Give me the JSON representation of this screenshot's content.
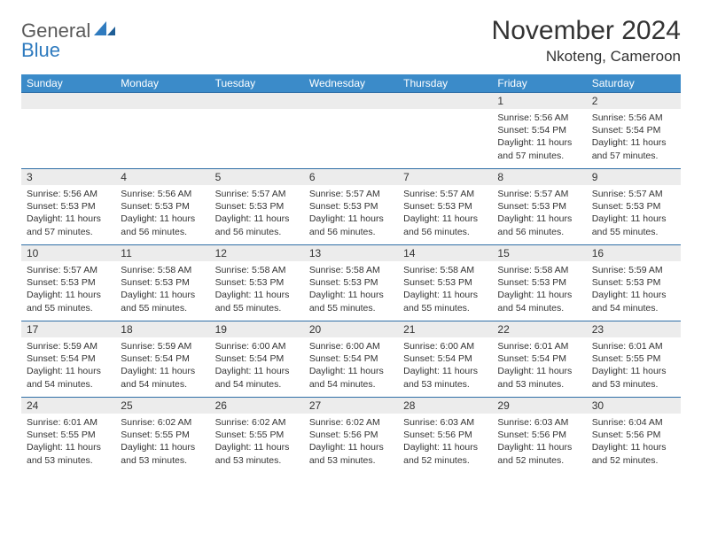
{
  "logo": {
    "word1": "General",
    "word2": "Blue"
  },
  "title": "November 2024",
  "location": "Nkoteng, Cameroon",
  "colors": {
    "header_bg": "#3b8bc9",
    "header_text": "#ffffff",
    "cell_border": "#2f6fa6",
    "daynum_bg": "#ececec",
    "text": "#333333",
    "logo_gray": "#5a5a5a",
    "logo_blue": "#2f7bbf"
  },
  "day_names": [
    "Sunday",
    "Monday",
    "Tuesday",
    "Wednesday",
    "Thursday",
    "Friday",
    "Saturday"
  ],
  "weeks": [
    [
      {
        "n": "",
        "sr": "",
        "ss": "",
        "d1": "",
        "d2": ""
      },
      {
        "n": "",
        "sr": "",
        "ss": "",
        "d1": "",
        "d2": ""
      },
      {
        "n": "",
        "sr": "",
        "ss": "",
        "d1": "",
        "d2": ""
      },
      {
        "n": "",
        "sr": "",
        "ss": "",
        "d1": "",
        "d2": ""
      },
      {
        "n": "",
        "sr": "",
        "ss": "",
        "d1": "",
        "d2": ""
      },
      {
        "n": "1",
        "sr": "Sunrise: 5:56 AM",
        "ss": "Sunset: 5:54 PM",
        "d1": "Daylight: 11 hours",
        "d2": "and 57 minutes."
      },
      {
        "n": "2",
        "sr": "Sunrise: 5:56 AM",
        "ss": "Sunset: 5:54 PM",
        "d1": "Daylight: 11 hours",
        "d2": "and 57 minutes."
      }
    ],
    [
      {
        "n": "3",
        "sr": "Sunrise: 5:56 AM",
        "ss": "Sunset: 5:53 PM",
        "d1": "Daylight: 11 hours",
        "d2": "and 57 minutes."
      },
      {
        "n": "4",
        "sr": "Sunrise: 5:56 AM",
        "ss": "Sunset: 5:53 PM",
        "d1": "Daylight: 11 hours",
        "d2": "and 56 minutes."
      },
      {
        "n": "5",
        "sr": "Sunrise: 5:57 AM",
        "ss": "Sunset: 5:53 PM",
        "d1": "Daylight: 11 hours",
        "d2": "and 56 minutes."
      },
      {
        "n": "6",
        "sr": "Sunrise: 5:57 AM",
        "ss": "Sunset: 5:53 PM",
        "d1": "Daylight: 11 hours",
        "d2": "and 56 minutes."
      },
      {
        "n": "7",
        "sr": "Sunrise: 5:57 AM",
        "ss": "Sunset: 5:53 PM",
        "d1": "Daylight: 11 hours",
        "d2": "and 56 minutes."
      },
      {
        "n": "8",
        "sr": "Sunrise: 5:57 AM",
        "ss": "Sunset: 5:53 PM",
        "d1": "Daylight: 11 hours",
        "d2": "and 56 minutes."
      },
      {
        "n": "9",
        "sr": "Sunrise: 5:57 AM",
        "ss": "Sunset: 5:53 PM",
        "d1": "Daylight: 11 hours",
        "d2": "and 55 minutes."
      }
    ],
    [
      {
        "n": "10",
        "sr": "Sunrise: 5:57 AM",
        "ss": "Sunset: 5:53 PM",
        "d1": "Daylight: 11 hours",
        "d2": "and 55 minutes."
      },
      {
        "n": "11",
        "sr": "Sunrise: 5:58 AM",
        "ss": "Sunset: 5:53 PM",
        "d1": "Daylight: 11 hours",
        "d2": "and 55 minutes."
      },
      {
        "n": "12",
        "sr": "Sunrise: 5:58 AM",
        "ss": "Sunset: 5:53 PM",
        "d1": "Daylight: 11 hours",
        "d2": "and 55 minutes."
      },
      {
        "n": "13",
        "sr": "Sunrise: 5:58 AM",
        "ss": "Sunset: 5:53 PM",
        "d1": "Daylight: 11 hours",
        "d2": "and 55 minutes."
      },
      {
        "n": "14",
        "sr": "Sunrise: 5:58 AM",
        "ss": "Sunset: 5:53 PM",
        "d1": "Daylight: 11 hours",
        "d2": "and 55 minutes."
      },
      {
        "n": "15",
        "sr": "Sunrise: 5:58 AM",
        "ss": "Sunset: 5:53 PM",
        "d1": "Daylight: 11 hours",
        "d2": "and 54 minutes."
      },
      {
        "n": "16",
        "sr": "Sunrise: 5:59 AM",
        "ss": "Sunset: 5:53 PM",
        "d1": "Daylight: 11 hours",
        "d2": "and 54 minutes."
      }
    ],
    [
      {
        "n": "17",
        "sr": "Sunrise: 5:59 AM",
        "ss": "Sunset: 5:54 PM",
        "d1": "Daylight: 11 hours",
        "d2": "and 54 minutes."
      },
      {
        "n": "18",
        "sr": "Sunrise: 5:59 AM",
        "ss": "Sunset: 5:54 PM",
        "d1": "Daylight: 11 hours",
        "d2": "and 54 minutes."
      },
      {
        "n": "19",
        "sr": "Sunrise: 6:00 AM",
        "ss": "Sunset: 5:54 PM",
        "d1": "Daylight: 11 hours",
        "d2": "and 54 minutes."
      },
      {
        "n": "20",
        "sr": "Sunrise: 6:00 AM",
        "ss": "Sunset: 5:54 PM",
        "d1": "Daylight: 11 hours",
        "d2": "and 54 minutes."
      },
      {
        "n": "21",
        "sr": "Sunrise: 6:00 AM",
        "ss": "Sunset: 5:54 PM",
        "d1": "Daylight: 11 hours",
        "d2": "and 53 minutes."
      },
      {
        "n": "22",
        "sr": "Sunrise: 6:01 AM",
        "ss": "Sunset: 5:54 PM",
        "d1": "Daylight: 11 hours",
        "d2": "and 53 minutes."
      },
      {
        "n": "23",
        "sr": "Sunrise: 6:01 AM",
        "ss": "Sunset: 5:55 PM",
        "d1": "Daylight: 11 hours",
        "d2": "and 53 minutes."
      }
    ],
    [
      {
        "n": "24",
        "sr": "Sunrise: 6:01 AM",
        "ss": "Sunset: 5:55 PM",
        "d1": "Daylight: 11 hours",
        "d2": "and 53 minutes."
      },
      {
        "n": "25",
        "sr": "Sunrise: 6:02 AM",
        "ss": "Sunset: 5:55 PM",
        "d1": "Daylight: 11 hours",
        "d2": "and 53 minutes."
      },
      {
        "n": "26",
        "sr": "Sunrise: 6:02 AM",
        "ss": "Sunset: 5:55 PM",
        "d1": "Daylight: 11 hours",
        "d2": "and 53 minutes."
      },
      {
        "n": "27",
        "sr": "Sunrise: 6:02 AM",
        "ss": "Sunset: 5:56 PM",
        "d1": "Daylight: 11 hours",
        "d2": "and 53 minutes."
      },
      {
        "n": "28",
        "sr": "Sunrise: 6:03 AM",
        "ss": "Sunset: 5:56 PM",
        "d1": "Daylight: 11 hours",
        "d2": "and 52 minutes."
      },
      {
        "n": "29",
        "sr": "Sunrise: 6:03 AM",
        "ss": "Sunset: 5:56 PM",
        "d1": "Daylight: 11 hours",
        "d2": "and 52 minutes."
      },
      {
        "n": "30",
        "sr": "Sunrise: 6:04 AM",
        "ss": "Sunset: 5:56 PM",
        "d1": "Daylight: 11 hours",
        "d2": "and 52 minutes."
      }
    ]
  ]
}
